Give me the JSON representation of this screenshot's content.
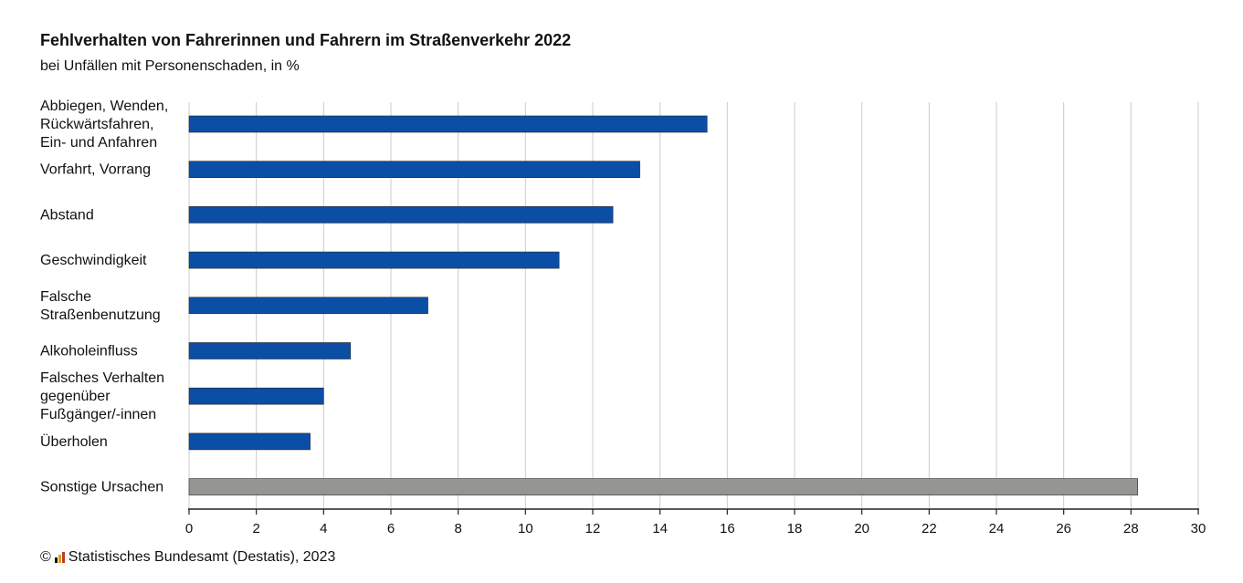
{
  "title": "Fehlverhalten von Fahrerinnen und Fahrern im Straßenverkehr 2022",
  "subtitle": "bei Unfällen mit Personenschaden, in %",
  "source": {
    "copyright": "©",
    "text": "Statistisches Bundesamt (Destatis), 2023"
  },
  "colors": {
    "bar_primary": "#0a4ea6",
    "bar_other": "#959694",
    "grid": "#cccccc",
    "axis": "#222222"
  },
  "chart_data": {
    "type": "bar",
    "orientation": "horizontal",
    "categories": [
      "Abbiegen, Wenden, Rückwärtsfahren, Ein- und Anfahren",
      "Vorfahrt, Vorrang",
      "Abstand",
      "Geschwindigkeit",
      "Falsche Straßenbenutzung",
      "Alkoholeinfluss",
      "Falsches Verhalten gegenüber Fußgänger/-innen",
      "Überholen",
      "Sonstige Ursachen"
    ],
    "category_lines": [
      [
        "Abbiegen, Wenden,",
        "Rückwärtsfahren,",
        "Ein- und Anfahren"
      ],
      [
        "Vorfahrt, Vorrang"
      ],
      [
        "Abstand"
      ],
      [
        "Geschwindigkeit"
      ],
      [
        "Falsche",
        "Straßenbenutzung"
      ],
      [
        "Alkoholeinfluss"
      ],
      [
        "Falsches Verhalten",
        "gegenüber",
        "Fußgänger/-innen"
      ],
      [
        "Überholen"
      ],
      [
        "Sonstige Ursachen"
      ]
    ],
    "values": [
      15.4,
      13.4,
      12.6,
      11.0,
      7.1,
      4.8,
      4.0,
      3.6,
      28.2
    ],
    "highlight_other_index": 8,
    "xlim": [
      0,
      30
    ],
    "xticks": [
      0,
      2,
      4,
      6,
      8,
      10,
      12,
      14,
      16,
      18,
      20,
      22,
      24,
      26,
      28,
      30
    ],
    "grid": "vertical",
    "legend": "none"
  }
}
